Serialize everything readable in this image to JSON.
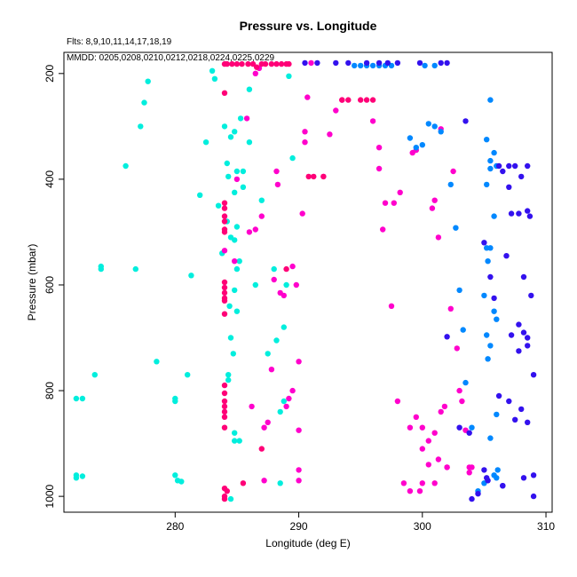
{
  "chart_data": {
    "type": "scatter",
    "title": "Pressure vs. Longitude",
    "annotations": [
      "Flts: 8,9,10,11,14,17,18,19",
      "MMDD: 0205,0208,0210,0212,0218,0224,0225,0229"
    ],
    "xlabel": "Longitude (deg E)",
    "ylabel": "Pressure (mbar)",
    "xlim": [
      271,
      310.5
    ],
    "ylim": [
      1030,
      160
    ],
    "x_ticks": [
      280,
      290,
      300,
      310
    ],
    "y_ticks": [
      200,
      400,
      600,
      800,
      1000
    ],
    "grid": false,
    "series": [
      {
        "color": "#00eedd",
        "points": [
          [
            272,
            815
          ],
          [
            272.5,
            815
          ],
          [
            273.5,
            770
          ],
          [
            274,
            565
          ],
          [
            274,
            570
          ],
          [
            272,
            960
          ],
          [
            272,
            965
          ],
          [
            272.5,
            962
          ],
          [
            276,
            375
          ],
          [
            276.8,
            570
          ],
          [
            277.2,
            300
          ],
          [
            277.5,
            255
          ],
          [
            277.8,
            215
          ],
          [
            278.5,
            745
          ],
          [
            280,
            815
          ],
          [
            280,
            820
          ],
          [
            280,
            960
          ],
          [
            280.2,
            970
          ],
          [
            280.5,
            972
          ],
          [
            281,
            770
          ],
          [
            281.3,
            582
          ],
          [
            282,
            430
          ],
          [
            282.5,
            330
          ],
          [
            283,
            195
          ],
          [
            283.2,
            210
          ],
          [
            283.5,
            450
          ],
          [
            283.8,
            540
          ],
          [
            284,
            300
          ],
          [
            284.2,
            370
          ],
          [
            284.3,
            395
          ],
          [
            284.5,
            320
          ],
          [
            284.2,
            480
          ],
          [
            284.5,
            510
          ],
          [
            284.4,
            640
          ],
          [
            284.5,
            700
          ],
          [
            284.3,
            770
          ],
          [
            284.3,
            780
          ],
          [
            284.7,
            730
          ],
          [
            284.8,
            610
          ],
          [
            284.8,
            880
          ],
          [
            284.5,
            1005
          ],
          [
            284.8,
            515
          ],
          [
            285,
            570
          ],
          [
            285,
            490
          ],
          [
            284.8,
            425
          ],
          [
            285,
            385
          ],
          [
            284.8,
            310
          ],
          [
            285,
            650
          ],
          [
            285.2,
            555
          ],
          [
            285.3,
            285
          ],
          [
            285.5,
            385
          ],
          [
            285.5,
            415
          ],
          [
            286,
            230
          ],
          [
            286,
            330
          ],
          [
            284.8,
            895
          ],
          [
            285.2,
            895
          ],
          [
            286.5,
            600
          ],
          [
            287,
            440
          ],
          [
            287.5,
            730
          ],
          [
            288,
            570
          ],
          [
            288.2,
            705
          ],
          [
            288.5,
            840
          ],
          [
            288.8,
            820
          ],
          [
            288.8,
            680
          ],
          [
            289,
            600
          ],
          [
            289.2,
            205
          ],
          [
            289.5,
            360
          ],
          [
            288.5,
            975
          ]
        ]
      },
      {
        "color": "#ff00cc",
        "points": [
          [
            284,
            535
          ],
          [
            284.8,
            555
          ],
          [
            285,
            400
          ],
          [
            285.8,
            285
          ],
          [
            286,
            500
          ],
          [
            286.2,
            830
          ],
          [
            286.5,
            495
          ],
          [
            286.5,
            200
          ],
          [
            286.8,
            190
          ],
          [
            287,
            470
          ],
          [
            287.2,
            970
          ],
          [
            287.2,
            870
          ],
          [
            287.5,
            860
          ],
          [
            287.8,
            760
          ],
          [
            288,
            590
          ],
          [
            288.2,
            385
          ],
          [
            288.3,
            410
          ],
          [
            288.5,
            615
          ],
          [
            288.8,
            620
          ],
          [
            289,
            830
          ],
          [
            289.2,
            815
          ],
          [
            289.5,
            800
          ],
          [
            289.5,
            565
          ],
          [
            289.8,
            600
          ],
          [
            290,
            745
          ],
          [
            290,
            875
          ],
          [
            290,
            950
          ],
          [
            290,
            970
          ],
          [
            290.3,
            465
          ],
          [
            290.5,
            330
          ],
          [
            290.5,
            310
          ],
          [
            290.7,
            245
          ],
          [
            291,
            180
          ],
          [
            292,
            395
          ],
          [
            292.5,
            315
          ],
          [
            293,
            270
          ],
          [
            293.5,
            250
          ],
          [
            296,
            290
          ],
          [
            296.5,
            340
          ],
          [
            296.5,
            380
          ],
          [
            296.8,
            495
          ],
          [
            297,
            445
          ],
          [
            297.5,
            640
          ],
          [
            297.7,
            445
          ],
          [
            298,
            820
          ],
          [
            298.2,
            425
          ],
          [
            298.5,
            975
          ],
          [
            299,
            870
          ],
          [
            299,
            990
          ],
          [
            299.2,
            350
          ],
          [
            299.5,
            345
          ],
          [
            299.5,
            850
          ],
          [
            300,
            870
          ],
          [
            300,
            910
          ],
          [
            300,
            975
          ],
          [
            300.5,
            895
          ],
          [
            300.8,
            455
          ],
          [
            301,
            975
          ],
          [
            301,
            880
          ],
          [
            301.3,
            930
          ],
          [
            301.5,
            840
          ],
          [
            301.5,
            305
          ],
          [
            301.8,
            830
          ],
          [
            302,
            945
          ],
          [
            302,
            945
          ],
          [
            302.3,
            645
          ],
          [
            302.5,
            385
          ],
          [
            302.8,
            720
          ],
          [
            303,
            800
          ],
          [
            303.2,
            820
          ],
          [
            303.5,
            875
          ],
          [
            303.8,
            945
          ],
          [
            304,
            945
          ],
          [
            303.8,
            955
          ],
          [
            301.3,
            510
          ],
          [
            301,
            440
          ],
          [
            300.5,
            940
          ],
          [
            299.8,
            990
          ]
        ]
      },
      {
        "color": "#ff0077",
        "points": [
          [
            284,
            182
          ],
          [
            284.2,
            182
          ],
          [
            284.6,
            182
          ],
          [
            285,
            182
          ],
          [
            285.4,
            182
          ],
          [
            285.9,
            182
          ],
          [
            286.3,
            182
          ],
          [
            286.6,
            188
          ],
          [
            287,
            182
          ],
          [
            287.3,
            182
          ],
          [
            287.8,
            182
          ],
          [
            288.2,
            182
          ],
          [
            288.6,
            182
          ],
          [
            289,
            182
          ],
          [
            289.2,
            182
          ],
          [
            284,
            237
          ],
          [
            284,
            445
          ],
          [
            284,
            455
          ],
          [
            284,
            470
          ],
          [
            284,
            480
          ],
          [
            284,
            495
          ],
          [
            284,
            500
          ],
          [
            284,
            595
          ],
          [
            284,
            605
          ],
          [
            284,
            615
          ],
          [
            284,
            625
          ],
          [
            284,
            630
          ],
          [
            284,
            655
          ],
          [
            284,
            790
          ],
          [
            284,
            805
          ],
          [
            284,
            820
          ],
          [
            284,
            830
          ],
          [
            284,
            840
          ],
          [
            284,
            850
          ],
          [
            284,
            870
          ],
          [
            284,
            985
          ],
          [
            284,
            1000
          ],
          [
            284,
            1005
          ],
          [
            284.2,
            990
          ],
          [
            285.5,
            975
          ],
          [
            287,
            910
          ],
          [
            289,
            570
          ],
          [
            293.5,
            250
          ],
          [
            295,
            250
          ],
          [
            295.5,
            250
          ],
          [
            296,
            250
          ],
          [
            291.2,
            395
          ],
          [
            292,
            395
          ],
          [
            290.8,
            395
          ],
          [
            294,
            250
          ]
        ]
      },
      {
        "color": "#0088ff",
        "points": [
          [
            294.5,
            185
          ],
          [
            295,
            185
          ],
          [
            295.5,
            185
          ],
          [
            296,
            185
          ],
          [
            296.5,
            185
          ],
          [
            297,
            185
          ],
          [
            297.5,
            185
          ],
          [
            299,
            322
          ],
          [
            299.5,
            340
          ],
          [
            300,
            335
          ],
          [
            300.5,
            295
          ],
          [
            301,
            300
          ],
          [
            301.5,
            310
          ],
          [
            302.3,
            410
          ],
          [
            302.7,
            492
          ],
          [
            303,
            610
          ],
          [
            303.3,
            685
          ],
          [
            303.5,
            785
          ],
          [
            304,
            870
          ],
          [
            304.5,
            990
          ],
          [
            305,
            620
          ],
          [
            305.2,
            695
          ],
          [
            305.5,
            715
          ],
          [
            305.8,
            650
          ],
          [
            305.3,
            555
          ],
          [
            305.5,
            530
          ],
          [
            305.2,
            410
          ],
          [
            305.5,
            380
          ],
          [
            305.2,
            325
          ],
          [
            305.5,
            250
          ],
          [
            305.8,
            350
          ],
          [
            306,
            375
          ],
          [
            305.8,
            470
          ],
          [
            306,
            665
          ],
          [
            305.3,
            740
          ],
          [
            306,
            845
          ],
          [
            305.8,
            960
          ],
          [
            305,
            975
          ],
          [
            306.1,
            950
          ],
          [
            306,
            965
          ],
          [
            305.5,
            890
          ],
          [
            300.2,
            185
          ],
          [
            301,
            185
          ],
          [
            305.5,
            365
          ],
          [
            305.2,
            530
          ]
        ]
      },
      {
        "color": "#3311ee",
        "points": [
          [
            290.5,
            180
          ],
          [
            291.5,
            180
          ],
          [
            293,
            180
          ],
          [
            294,
            180
          ],
          [
            295.5,
            180
          ],
          [
            296.5,
            180
          ],
          [
            297.2,
            180
          ],
          [
            298,
            180
          ],
          [
            299.8,
            180
          ],
          [
            301.5,
            180
          ],
          [
            302,
            180
          ],
          [
            303.5,
            290
          ],
          [
            302,
            698
          ],
          [
            303,
            870
          ],
          [
            303.8,
            880
          ],
          [
            305,
            520
          ],
          [
            305.5,
            585
          ],
          [
            305.8,
            625
          ],
          [
            306.2,
            375
          ],
          [
            306.5,
            385
          ],
          [
            307,
            375
          ],
          [
            307.5,
            375
          ],
          [
            307,
            415
          ],
          [
            307.2,
            465
          ],
          [
            307.8,
            465
          ],
          [
            308,
            395
          ],
          [
            308.5,
            460
          ],
          [
            308.7,
            470
          ],
          [
            308.5,
            375
          ],
          [
            308.8,
            620
          ],
          [
            308.2,
            585
          ],
          [
            307.8,
            675
          ],
          [
            308.5,
            700
          ],
          [
            307.2,
            695
          ],
          [
            307.8,
            725
          ],
          [
            308.5,
            715
          ],
          [
            308.2,
            690
          ],
          [
            306.8,
            545
          ],
          [
            306.2,
            810
          ],
          [
            306.5,
            980
          ],
          [
            307,
            820
          ],
          [
            308,
            835
          ],
          [
            308.5,
            860
          ],
          [
            309,
            770
          ],
          [
            309,
            960
          ],
          [
            309,
            1000
          ],
          [
            304,
            1005
          ],
          [
            304.5,
            995
          ],
          [
            305,
            950
          ],
          [
            305.2,
            965
          ],
          [
            305.3,
            970
          ],
          [
            306.5,
            980
          ],
          [
            308.2,
            965
          ],
          [
            307.5,
            855
          ]
        ]
      }
    ]
  }
}
